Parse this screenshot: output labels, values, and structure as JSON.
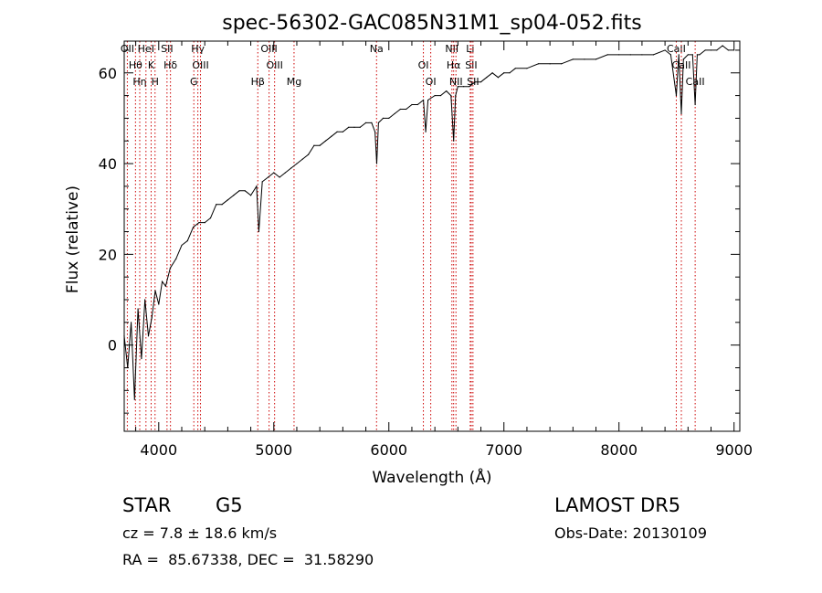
{
  "chart_data": {
    "type": "line",
    "title": "spec-56302-GAC085N31M1_sp04-052.fits",
    "xlabel": "Wavelength (Å)",
    "ylabel": "Flux (relative)",
    "xlim": [
      3700,
      9050
    ],
    "ylim": [
      -19,
      67
    ],
    "xticks": [
      4000,
      5000,
      6000,
      7000,
      8000,
      9000
    ],
    "yticks": [
      0,
      20,
      40,
      60
    ],
    "series": [
      {
        "x": [
          3700,
          3730,
          3760,
          3790,
          3820,
          3850,
          3880,
          3910,
          3940,
          3970,
          4000,
          4030,
          4060,
          4100,
          4150,
          4200,
          4250,
          4300,
          4350,
          4400,
          4450,
          4500,
          4550,
          4600,
          4650,
          4700,
          4750,
          4800,
          4850,
          4870,
          4900,
          4950,
          5000,
          5050,
          5100,
          5150,
          5200,
          5250,
          5300,
          5350,
          5400,
          5450,
          5500,
          5550,
          5600,
          5650,
          5700,
          5750,
          5800,
          5850,
          5880,
          5895,
          5910,
          5950,
          6000,
          6050,
          6100,
          6150,
          6200,
          6250,
          6300,
          6320,
          6340,
          6400,
          6450,
          6500,
          6540,
          6563,
          6580,
          6600,
          6650,
          6700,
          6750,
          6800,
          6850,
          6900,
          6950,
          7000,
          7050,
          7100,
          7200,
          7300,
          7400,
          7500,
          7600,
          7700,
          7800,
          7900,
          8000,
          8100,
          8200,
          8300,
          8400,
          8450,
          8498,
          8520,
          8542,
          8560,
          8600,
          8640,
          8662,
          8680,
          8700,
          8750,
          8800,
          8850,
          8900,
          8950,
          9000
        ],
        "y": [
          2,
          -5,
          5,
          -12,
          8,
          -3,
          10,
          2,
          6,
          12,
          9,
          14,
          13,
          17,
          19,
          22,
          23,
          26,
          27,
          27,
          28,
          31,
          31,
          32,
          33,
          34,
          34,
          33,
          35,
          25,
          36,
          37,
          38,
          37,
          38,
          39,
          40,
          41,
          42,
          44,
          44,
          45,
          46,
          47,
          47,
          48,
          48,
          48,
          49,
          49,
          47,
          40,
          49,
          50,
          50,
          51,
          52,
          52,
          53,
          53,
          54,
          47,
          54,
          55,
          55,
          56,
          55,
          45,
          55,
          57,
          57,
          57,
          58,
          58,
          59,
          60,
          59,
          60,
          60,
          61,
          61,
          62,
          62,
          62,
          63,
          63,
          63,
          64,
          64,
          64,
          64,
          64,
          65,
          64,
          55,
          64,
          51,
          63,
          64,
          64,
          53,
          64,
          64,
          65,
          65,
          65,
          66,
          65,
          65
        ]
      }
    ],
    "lines": [
      {
        "name": "OII",
        "x": 3727
      },
      {
        "name": "Hθ",
        "x": 3798
      },
      {
        "name": "Hη",
        "x": 3835
      },
      {
        "name": "HeI",
        "x": 3889
      },
      {
        "name": "K",
        "x": 3934
      },
      {
        "name": "H",
        "x": 3968
      },
      {
        "name": "SII",
        "x": 4072
      },
      {
        "name": "Hδ",
        "x": 4102
      },
      {
        "name": "G",
        "x": 4305
      },
      {
        "name": "Hγ",
        "x": 4340
      },
      {
        "name": "OIII",
        "x": 4363
      },
      {
        "name": "Hβ",
        "x": 4861
      },
      {
        "name": "OIII",
        "x": 4959
      },
      {
        "name": "OIII",
        "x": 5007
      },
      {
        "name": "Mg",
        "x": 5176
      },
      {
        "name": "Na",
        "x": 5893
      },
      {
        "name": "OI",
        "x": 6300
      },
      {
        "name": "OI",
        "x": 6364
      },
      {
        "name": "NII",
        "x": 6548
      },
      {
        "name": "Hα",
        "x": 6563
      },
      {
        "name": "NII",
        "x": 6583
      },
      {
        "name": "Li",
        "x": 6707
      },
      {
        "name": "SII",
        "x": 6716
      },
      {
        "name": "SII",
        "x": 6731
      },
      {
        "name": "CaII",
        "x": 8498
      },
      {
        "name": "CaII",
        "x": 8542
      },
      {
        "name": "CaII",
        "x": 8662
      }
    ],
    "line_color": "#cc0000"
  },
  "info": {
    "class": "STAR",
    "subclass": "G5",
    "survey": "LAMOST DR5",
    "redshift": "cz = 7.8 ± 18.6 km/s",
    "obs_date": "Obs-Date: 20130109",
    "coords": "RA =  85.67338, DEC =  31.58290"
  }
}
